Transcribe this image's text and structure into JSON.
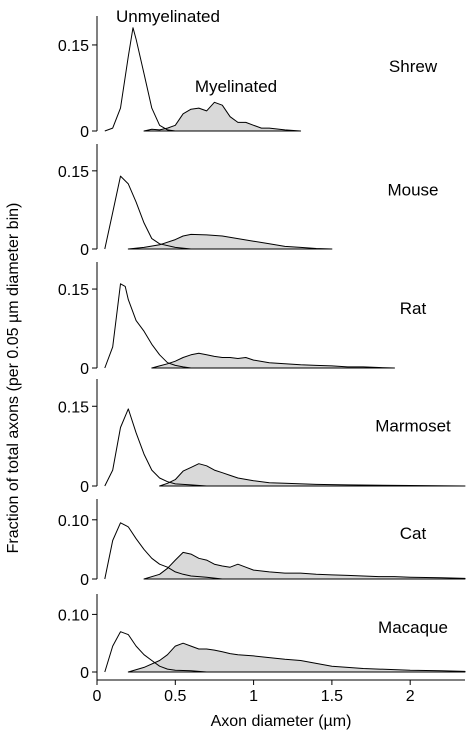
{
  "chart_data": {
    "type": "area",
    "ylabel": "Fraction of total axons (per 0.05 µm  diameter bin)",
    "xlabel": "Axon diameter (µm)",
    "xlim": [
      0,
      2.35
    ],
    "x_ticks": [
      {
        "v": 0,
        "label": "0"
      },
      {
        "v": 0.5,
        "label": "0.5"
      },
      {
        "v": 1,
        "label": "1"
      },
      {
        "v": 1.5,
        "label": "1.5"
      },
      {
        "v": 2,
        "label": "2"
      }
    ],
    "series_names": {
      "unmyelinated": "Unmyelinated",
      "myelinated": "Myelinated"
    },
    "colors": {
      "myelinated_fill": "#d9d9d9",
      "line": "#000000",
      "background": "#ffffff"
    },
    "panels": [
      {
        "species": "Shrew",
        "ylim": [
          0,
          0.19
        ],
        "y_ticks": [
          {
            "v": 0,
            "label": "0"
          },
          {
            "v": 0.15,
            "label": "0.15"
          }
        ],
        "unmyelinated": [
          [
            0.05,
            0
          ],
          [
            0.1,
            0.005
          ],
          [
            0.15,
            0.04
          ],
          [
            0.2,
            0.13
          ],
          [
            0.23,
            0.18
          ],
          [
            0.25,
            0.16
          ],
          [
            0.3,
            0.1
          ],
          [
            0.35,
            0.04
          ],
          [
            0.4,
            0.01
          ],
          [
            0.45,
            0.002
          ],
          [
            0.5,
            0
          ]
        ],
        "myelinated": [
          [
            0.3,
            0
          ],
          [
            0.35,
            0.003
          ],
          [
            0.4,
            0.002
          ],
          [
            0.45,
            0.005
          ],
          [
            0.5,
            0.01
          ],
          [
            0.55,
            0.03
          ],
          [
            0.6,
            0.038
          ],
          [
            0.65,
            0.04
          ],
          [
            0.7,
            0.035
          ],
          [
            0.75,
            0.05
          ],
          [
            0.8,
            0.045
          ],
          [
            0.85,
            0.025
          ],
          [
            0.9,
            0.015
          ],
          [
            0.95,
            0.015
          ],
          [
            1.0,
            0.01
          ],
          [
            1.05,
            0.005
          ],
          [
            1.1,
            0.005
          ],
          [
            1.2,
            0.002
          ],
          [
            1.3,
            0
          ]
        ]
      },
      {
        "species": "Mouse",
        "ylim": [
          0,
          0.19
        ],
        "y_ticks": [
          {
            "v": 0,
            "label": "0"
          },
          {
            "v": 0.15,
            "label": "0.15"
          }
        ],
        "unmyelinated": [
          [
            0.05,
            0
          ],
          [
            0.1,
            0.07
          ],
          [
            0.15,
            0.14
          ],
          [
            0.2,
            0.125
          ],
          [
            0.25,
            0.09
          ],
          [
            0.3,
            0.05
          ],
          [
            0.35,
            0.02
          ],
          [
            0.4,
            0.01
          ],
          [
            0.5,
            0.003
          ],
          [
            0.6,
            0
          ]
        ],
        "myelinated": [
          [
            0.2,
            0
          ],
          [
            0.3,
            0.003
          ],
          [
            0.4,
            0.008
          ],
          [
            0.5,
            0.018
          ],
          [
            0.55,
            0.025
          ],
          [
            0.6,
            0.028
          ],
          [
            0.7,
            0.027
          ],
          [
            0.8,
            0.025
          ],
          [
            0.9,
            0.02
          ],
          [
            1.0,
            0.015
          ],
          [
            1.1,
            0.01
          ],
          [
            1.2,
            0.005
          ],
          [
            1.3,
            0.003
          ],
          [
            1.4,
            0.001
          ],
          [
            1.5,
            0
          ]
        ]
      },
      {
        "species": "Rat",
        "ylim": [
          0,
          0.19
        ],
        "y_ticks": [
          {
            "v": 0,
            "label": "0"
          },
          {
            "v": 0.15,
            "label": "0.15"
          }
        ],
        "unmyelinated": [
          [
            0.05,
            0
          ],
          [
            0.1,
            0.04
          ],
          [
            0.15,
            0.16
          ],
          [
            0.18,
            0.155
          ],
          [
            0.2,
            0.13
          ],
          [
            0.25,
            0.09
          ],
          [
            0.3,
            0.07
          ],
          [
            0.35,
            0.045
          ],
          [
            0.4,
            0.025
          ],
          [
            0.45,
            0.01
          ],
          [
            0.5,
            0.005
          ],
          [
            0.55,
            0.002
          ],
          [
            0.6,
            0
          ]
        ],
        "myelinated": [
          [
            0.35,
            0
          ],
          [
            0.4,
            0.004
          ],
          [
            0.45,
            0.008
          ],
          [
            0.5,
            0.013
          ],
          [
            0.55,
            0.02
          ],
          [
            0.6,
            0.025
          ],
          [
            0.65,
            0.028
          ],
          [
            0.7,
            0.025
          ],
          [
            0.75,
            0.022
          ],
          [
            0.8,
            0.02
          ],
          [
            0.85,
            0.02
          ],
          [
            0.9,
            0.018
          ],
          [
            0.95,
            0.02
          ],
          [
            1.0,
            0.015
          ],
          [
            1.1,
            0.01
          ],
          [
            1.2,
            0.008
          ],
          [
            1.3,
            0.006
          ],
          [
            1.4,
            0.005
          ],
          [
            1.5,
            0.004
          ],
          [
            1.6,
            0.002
          ],
          [
            1.7,
            0.002
          ],
          [
            1.8,
            0.001
          ],
          [
            1.9,
            0
          ]
        ]
      },
      {
        "species": "Marmoset",
        "ylim": [
          0,
          0.19
        ],
        "y_ticks": [
          {
            "v": 0,
            "label": "0"
          },
          {
            "v": 0.15,
            "label": "0.15"
          }
        ],
        "unmyelinated": [
          [
            0.05,
            0
          ],
          [
            0.1,
            0.03
          ],
          [
            0.15,
            0.11
          ],
          [
            0.2,
            0.145
          ],
          [
            0.25,
            0.1
          ],
          [
            0.3,
            0.06
          ],
          [
            0.35,
            0.03
          ],
          [
            0.4,
            0.015
          ],
          [
            0.45,
            0.008
          ],
          [
            0.5,
            0.004
          ],
          [
            0.6,
            0.002
          ],
          [
            0.7,
            0
          ]
        ],
        "myelinated": [
          [
            0.4,
            0
          ],
          [
            0.45,
            0.005
          ],
          [
            0.5,
            0.012
          ],
          [
            0.55,
            0.028
          ],
          [
            0.6,
            0.035
          ],
          [
            0.65,
            0.042
          ],
          [
            0.7,
            0.038
          ],
          [
            0.75,
            0.03
          ],
          [
            0.8,
            0.025
          ],
          [
            0.85,
            0.02
          ],
          [
            0.9,
            0.015
          ],
          [
            1.0,
            0.01
          ],
          [
            1.1,
            0.006
          ],
          [
            1.2,
            0.005
          ],
          [
            1.4,
            0.003
          ],
          [
            1.6,
            0.002
          ],
          [
            2.0,
            0.001
          ],
          [
            2.35,
            0
          ]
        ]
      },
      {
        "species": "Cat",
        "ylim": [
          0,
          0.125
        ],
        "y_ticks": [
          {
            "v": 0,
            "label": "0"
          },
          {
            "v": 0.1,
            "label": "0.10"
          }
        ],
        "unmyelinated": [
          [
            0.05,
            0
          ],
          [
            0.1,
            0.065
          ],
          [
            0.15,
            0.095
          ],
          [
            0.2,
            0.088
          ],
          [
            0.25,
            0.068
          ],
          [
            0.3,
            0.05
          ],
          [
            0.35,
            0.035
          ],
          [
            0.4,
            0.025
          ],
          [
            0.45,
            0.02
          ],
          [
            0.5,
            0.012
          ],
          [
            0.55,
            0.008
          ],
          [
            0.6,
            0.005
          ],
          [
            0.7,
            0.003
          ],
          [
            0.8,
            0
          ]
        ],
        "myelinated": [
          [
            0.3,
            0
          ],
          [
            0.4,
            0.008
          ],
          [
            0.45,
            0.018
          ],
          [
            0.5,
            0.032
          ],
          [
            0.55,
            0.045
          ],
          [
            0.6,
            0.042
          ],
          [
            0.65,
            0.035
          ],
          [
            0.7,
            0.032
          ],
          [
            0.75,
            0.025
          ],
          [
            0.8,
            0.022
          ],
          [
            0.85,
            0.02
          ],
          [
            0.9,
            0.025
          ],
          [
            0.95,
            0.02
          ],
          [
            1.0,
            0.015
          ],
          [
            1.1,
            0.012
          ],
          [
            1.2,
            0.01
          ],
          [
            1.3,
            0.01
          ],
          [
            1.4,
            0.008
          ],
          [
            1.5,
            0.007
          ],
          [
            1.6,
            0.006
          ],
          [
            1.7,
            0.005
          ],
          [
            1.8,
            0.004
          ],
          [
            1.9,
            0.004
          ],
          [
            2.0,
            0.003
          ],
          [
            2.2,
            0.002
          ],
          [
            2.35,
            0.001
          ]
        ]
      },
      {
        "species": "Macaque",
        "ylim": [
          0,
          0.125
        ],
        "y_ticks": [
          {
            "v": 0,
            "label": "0"
          },
          {
            "v": 0.1,
            "label": "0.10"
          }
        ],
        "unmyelinated": [
          [
            0.05,
            0
          ],
          [
            0.1,
            0.045
          ],
          [
            0.15,
            0.07
          ],
          [
            0.2,
            0.065
          ],
          [
            0.25,
            0.045
          ],
          [
            0.3,
            0.03
          ],
          [
            0.35,
            0.02
          ],
          [
            0.4,
            0.01
          ],
          [
            0.45,
            0.005
          ],
          [
            0.5,
            0.003
          ],
          [
            0.6,
            0.002
          ],
          [
            0.7,
            0
          ]
        ],
        "myelinated": [
          [
            0.2,
            0
          ],
          [
            0.3,
            0.008
          ],
          [
            0.4,
            0.02
          ],
          [
            0.45,
            0.03
          ],
          [
            0.5,
            0.045
          ],
          [
            0.55,
            0.05
          ],
          [
            0.6,
            0.045
          ],
          [
            0.65,
            0.04
          ],
          [
            0.7,
            0.04
          ],
          [
            0.75,
            0.038
          ],
          [
            0.8,
            0.035
          ],
          [
            0.85,
            0.032
          ],
          [
            0.9,
            0.03
          ],
          [
            1.0,
            0.028
          ],
          [
            1.1,
            0.025
          ],
          [
            1.2,
            0.022
          ],
          [
            1.3,
            0.02
          ],
          [
            1.4,
            0.015
          ],
          [
            1.5,
            0.01
          ],
          [
            1.6,
            0.008
          ],
          [
            1.7,
            0.006
          ],
          [
            1.8,
            0.005
          ],
          [
            2.0,
            0.003
          ],
          [
            2.2,
            0.002
          ],
          [
            2.35,
            0.001
          ]
        ]
      }
    ]
  }
}
